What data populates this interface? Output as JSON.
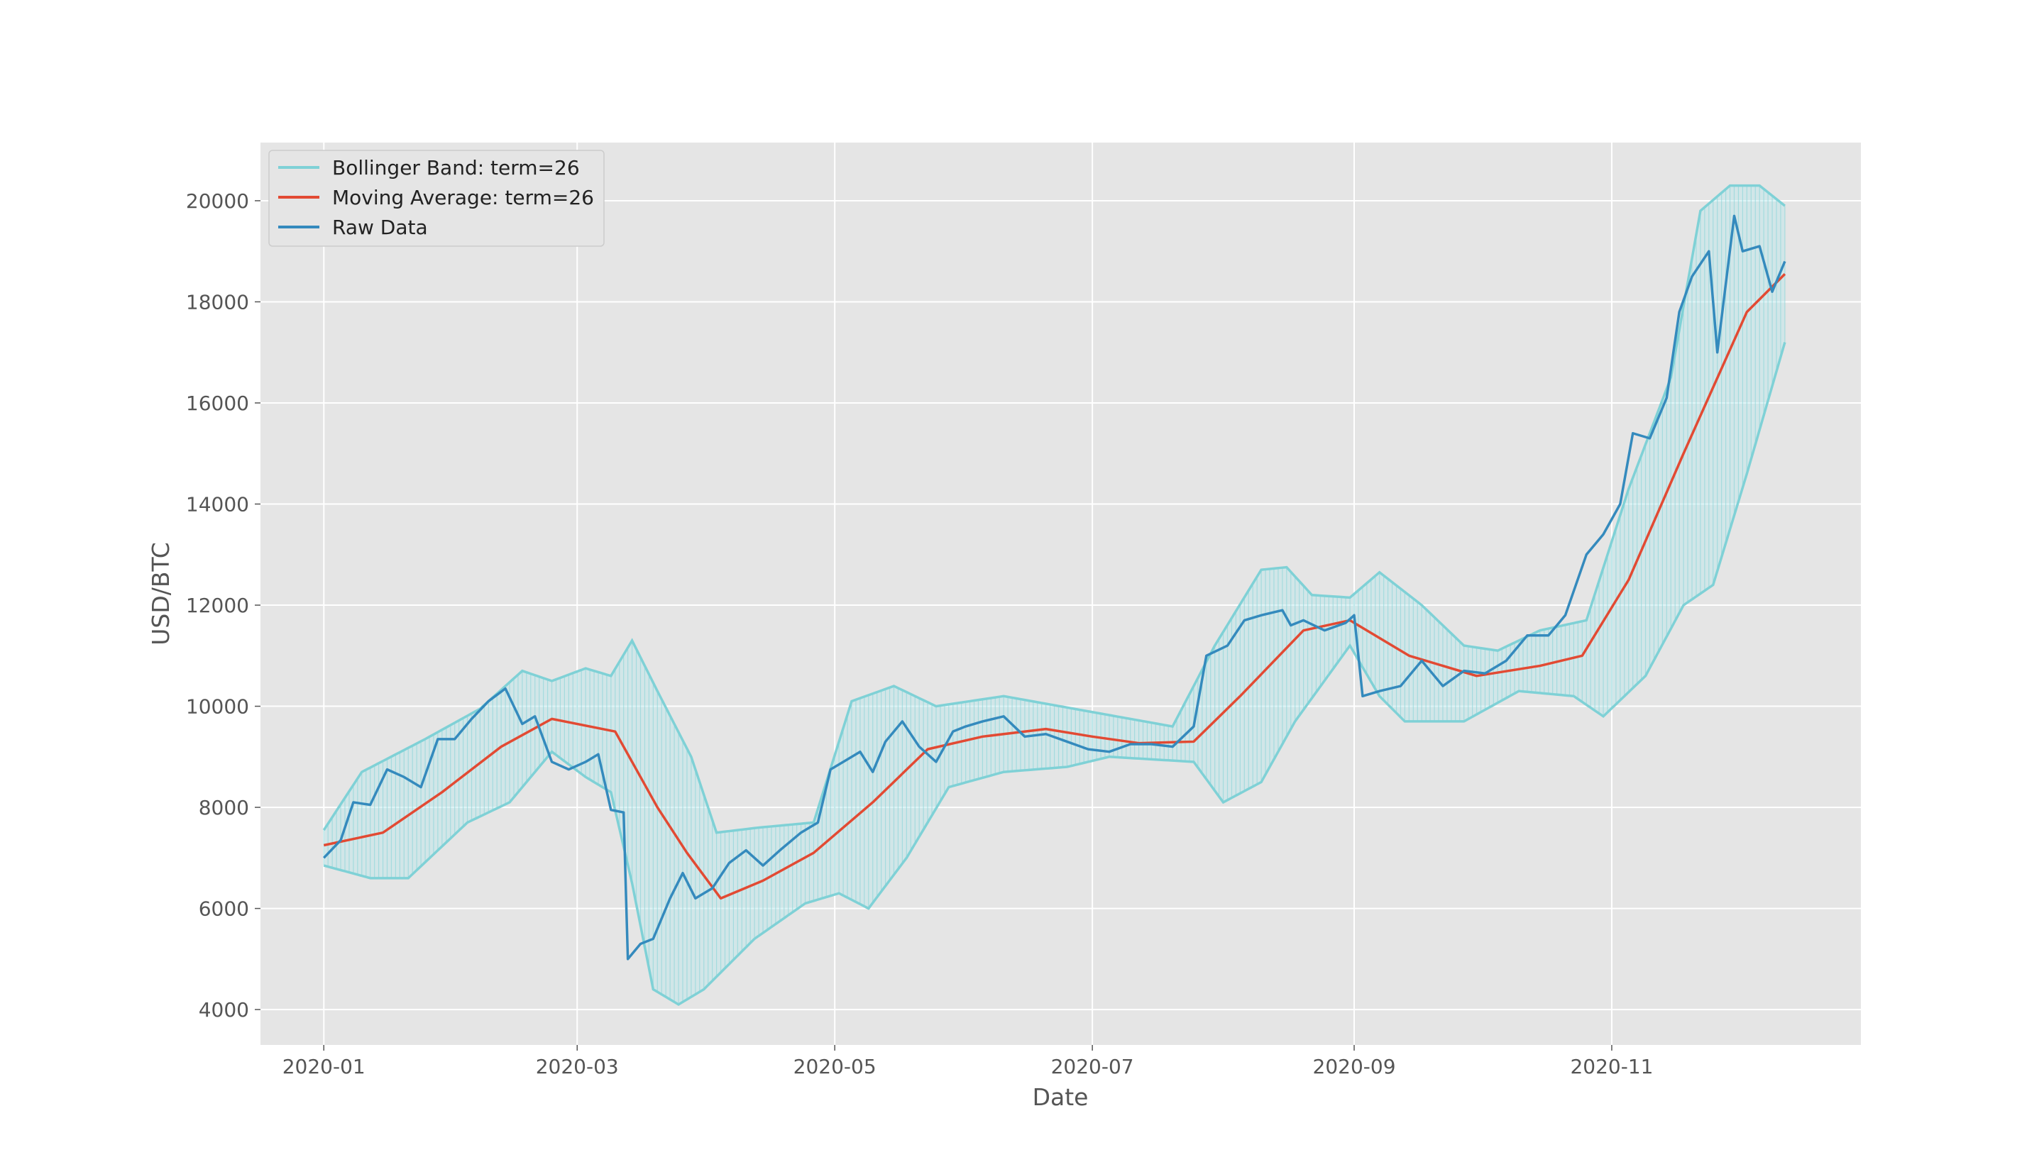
{
  "chart_data": {
    "type": "line",
    "title": "",
    "xlabel": "Date",
    "ylabel": "USD/BTC",
    "x_range": [
      "2020-01-01",
      "2020-12-12"
    ],
    "xlim": [
      "2019-12-17",
      "2020-12-30"
    ],
    "ylim": [
      3300,
      21150
    ],
    "x_ticks": [
      "2020-01",
      "2020-03",
      "2020-05",
      "2020-07",
      "2020-09",
      "2020-11"
    ],
    "y_ticks": [
      4000,
      6000,
      8000,
      10000,
      12000,
      14000,
      16000,
      18000,
      20000
    ],
    "grid": true,
    "legend_position": "top-left",
    "legend": [
      "Bollinger Band: term=26",
      "Moving Average: term=26",
      "Raw Data"
    ],
    "colors": {
      "band": "#7fd1d6",
      "band_fill": "#b7e7ea",
      "moving_average": "#e24a33",
      "raw": "#348abd",
      "background": "#e5e5e5",
      "grid": "#ffffff"
    },
    "series": [
      {
        "name": "Raw Data",
        "x": [
          "2020-01-01",
          "2020-01-05",
          "2020-01-08",
          "2020-01-12",
          "2020-01-16",
          "2020-01-20",
          "2020-01-24",
          "2020-01-28",
          "2020-02-01",
          "2020-02-05",
          "2020-02-09",
          "2020-02-13",
          "2020-02-17",
          "2020-02-20",
          "2020-02-24",
          "2020-02-28",
          "2020-03-03",
          "2020-03-06",
          "2020-03-09",
          "2020-03-12",
          "2020-03-13",
          "2020-03-16",
          "2020-03-19",
          "2020-03-23",
          "2020-03-26",
          "2020-03-29",
          "2020-04-02",
          "2020-04-06",
          "2020-04-10",
          "2020-04-14",
          "2020-04-18",
          "2020-04-23",
          "2020-04-27",
          "2020-04-30",
          "2020-05-03",
          "2020-05-07",
          "2020-05-10",
          "2020-05-13",
          "2020-05-17",
          "2020-05-21",
          "2020-05-25",
          "2020-05-29",
          "2020-06-01",
          "2020-06-05",
          "2020-06-10",
          "2020-06-15",
          "2020-06-20",
          "2020-06-25",
          "2020-06-30",
          "2020-07-05",
          "2020-07-10",
          "2020-07-15",
          "2020-07-20",
          "2020-07-25",
          "2020-07-28",
          "2020-08-02",
          "2020-08-06",
          "2020-08-10",
          "2020-08-15",
          "2020-08-17",
          "2020-08-20",
          "2020-08-25",
          "2020-08-30",
          "2020-09-01",
          "2020-09-03",
          "2020-09-07",
          "2020-09-12",
          "2020-09-17",
          "2020-09-22",
          "2020-09-27",
          "2020-10-02",
          "2020-10-07",
          "2020-10-12",
          "2020-10-17",
          "2020-10-21",
          "2020-10-26",
          "2020-10-30",
          "2020-11-03",
          "2020-11-06",
          "2020-11-10",
          "2020-11-14",
          "2020-11-17",
          "2020-11-20",
          "2020-11-24",
          "2020-11-26",
          "2020-11-30",
          "2020-12-02",
          "2020-12-06",
          "2020-12-09",
          "2020-12-12"
        ],
        "values": [
          7000,
          7350,
          8100,
          8050,
          8750,
          8600,
          8400,
          9350,
          9350,
          9750,
          10100,
          10350,
          9650,
          9800,
          8900,
          8750,
          8900,
          9050,
          7950,
          7900,
          5000,
          5300,
          5400,
          6200,
          6700,
          6200,
          6400,
          6900,
          7150,
          6850,
          7150,
          7500,
          7700,
          8750,
          8900,
          9100,
          8700,
          9300,
          9700,
          9200,
          8900,
          9500,
          9600,
          9700,
          9800,
          9400,
          9450,
          9300,
          9150,
          9100,
          9250,
          9250,
          9200,
          9600,
          11000,
          11200,
          11700,
          11800,
          11900,
          11600,
          11700,
          11500,
          11650,
          11800,
          10200,
          10300,
          10400,
          10900,
          10400,
          10700,
          10650,
          10900,
          11400,
          11400,
          11800,
          13000,
          13400,
          14000,
          15400,
          15300,
          16100,
          17800,
          18500,
          19000,
          17000,
          19700,
          19000,
          19100,
          18200,
          18800
        ]
      },
      {
        "name": "Moving Average: term=26",
        "x": [
          "2020-01-01",
          "2020-01-15",
          "2020-01-29",
          "2020-02-12",
          "2020-02-24",
          "2020-03-10",
          "2020-03-20",
          "2020-03-27",
          "2020-04-04",
          "2020-04-14",
          "2020-04-26",
          "2020-05-10",
          "2020-05-23",
          "2020-06-05",
          "2020-06-20",
          "2020-07-01",
          "2020-07-12",
          "2020-07-25",
          "2020-08-05",
          "2020-08-20",
          "2020-08-31",
          "2020-09-14",
          "2020-09-30",
          "2020-10-15",
          "2020-10-25",
          "2020-11-05",
          "2020-11-18",
          "2020-12-03",
          "2020-12-12"
        ],
        "values": [
          7250,
          7500,
          8300,
          9200,
          9750,
          9500,
          8000,
          7100,
          6200,
          6550,
          7100,
          8100,
          9150,
          9400,
          9550,
          9400,
          9270,
          9300,
          10200,
          11500,
          11700,
          11000,
          10600,
          10800,
          11000,
          12500,
          15000,
          17800,
          18550
        ]
      },
      {
        "name": "Bollinger Band: term=26",
        "upper": {
          "x": [
            "2020-01-01",
            "2020-01-10",
            "2020-01-25",
            "2020-02-07",
            "2020-02-17",
            "2020-02-24",
            "2020-03-03",
            "2020-03-09",
            "2020-03-14",
            "2020-03-20",
            "2020-03-28",
            "2020-04-03",
            "2020-04-13",
            "2020-04-26",
            "2020-05-05",
            "2020-05-15",
            "2020-05-25",
            "2020-06-10",
            "2020-06-30",
            "2020-07-20",
            "2020-07-30",
            "2020-08-10",
            "2020-08-16",
            "2020-08-22",
            "2020-08-31",
            "2020-09-07",
            "2020-09-17",
            "2020-09-27",
            "2020-10-05",
            "2020-10-15",
            "2020-10-26",
            "2020-11-05",
            "2020-11-15",
            "2020-11-22",
            "2020-11-29",
            "2020-12-06",
            "2020-12-12"
          ],
          "values": [
            7550,
            8700,
            9350,
            9950,
            10700,
            10500,
            10750,
            10600,
            11300,
            10300,
            9000,
            7500,
            7600,
            7700,
            10100,
            10400,
            10000,
            10200,
            9900,
            9600,
            11200,
            12700,
            12750,
            12200,
            12150,
            12650,
            12000,
            11200,
            11100,
            11500,
            11700,
            14300,
            16500,
            19800,
            20300,
            20300,
            19900
          ]
        },
        "lower": {
          "x": [
            "2020-01-01",
            "2020-01-12",
            "2020-01-21",
            "2020-02-04",
            "2020-02-14",
            "2020-02-24",
            "2020-03-03",
            "2020-03-09",
            "2020-03-14",
            "2020-03-19",
            "2020-03-25",
            "2020-03-31",
            "2020-04-12",
            "2020-04-24",
            "2020-05-02",
            "2020-05-09",
            "2020-05-18",
            "2020-05-28",
            "2020-06-10",
            "2020-06-25",
            "2020-07-05",
            "2020-07-25",
            "2020-08-01",
            "2020-08-10",
            "2020-08-18",
            "2020-08-31",
            "2020-09-07",
            "2020-09-13",
            "2020-09-27",
            "2020-10-10",
            "2020-10-23",
            "2020-10-30",
            "2020-11-09",
            "2020-11-18",
            "2020-11-25",
            "2020-12-03",
            "2020-12-12"
          ],
          "values": [
            6850,
            6600,
            6600,
            7700,
            8100,
            9100,
            8600,
            8300,
            6500,
            4400,
            4100,
            4400,
            5400,
            6100,
            6300,
            6000,
            7000,
            8400,
            8700,
            8800,
            9000,
            8900,
            8100,
            8500,
            9700,
            11200,
            10200,
            9700,
            9700,
            10300,
            10200,
            9800,
            10600,
            12000,
            12400,
            14600,
            17200
          ]
        }
      }
    ]
  }
}
